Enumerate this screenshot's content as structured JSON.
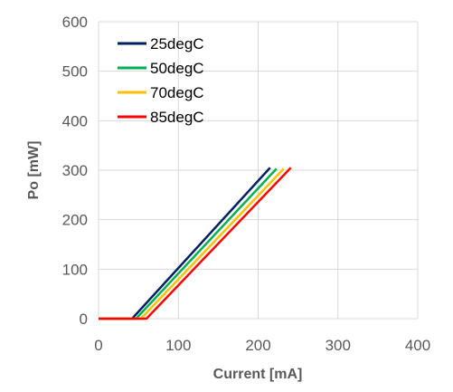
{
  "chart_data": {
    "type": "line",
    "xlabel": "Current [mA]",
    "ylabel": "Po [mW]",
    "xlim": [
      0,
      400
    ],
    "ylim": [
      0,
      600
    ],
    "xticks": [
      0,
      100,
      200,
      300,
      400
    ],
    "yticks": [
      0,
      100,
      200,
      300,
      400,
      500,
      600
    ],
    "grid": true,
    "legend_position": "top-left",
    "series": [
      {
        "name": "25degC",
        "color": "#002060",
        "x": [
          0,
          42,
          215
        ],
        "y": [
          0,
          0,
          305
        ]
      },
      {
        "name": "50degC",
        "color": "#00b050",
        "x": [
          0,
          47,
          223
        ],
        "y": [
          0,
          0,
          303
        ]
      },
      {
        "name": "70degC",
        "color": "#ffc000",
        "x": [
          0,
          53,
          232
        ],
        "y": [
          0,
          0,
          303
        ]
      },
      {
        "name": "85degC",
        "color": "#ff0000",
        "x": [
          0,
          60,
          241
        ],
        "y": [
          0,
          0,
          305
        ]
      }
    ]
  }
}
